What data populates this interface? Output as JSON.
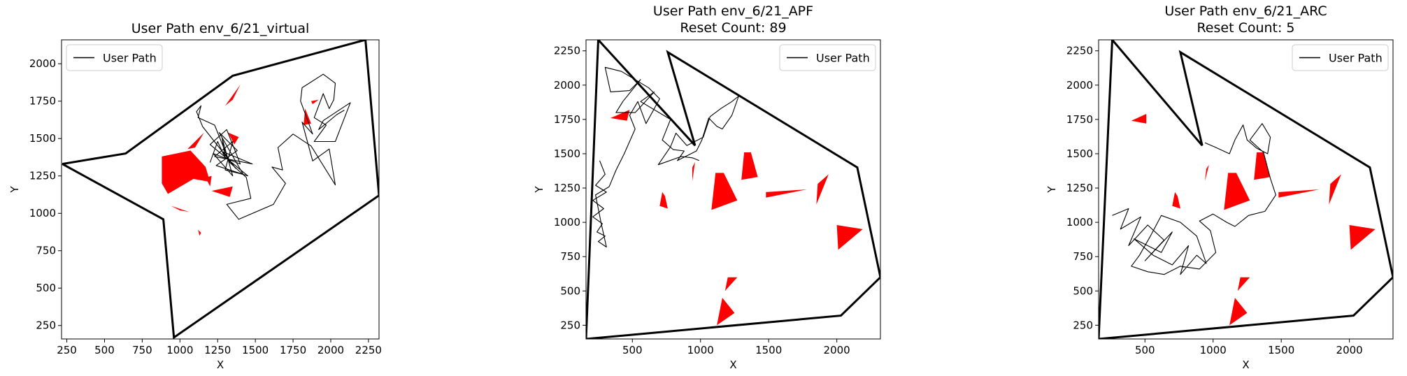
{
  "chart_data": [
    {
      "type": "line",
      "title": "User Path env_6/21_virtual",
      "subtitle": "",
      "xlabel": "X",
      "ylabel": "Y",
      "xlim": [
        215,
        2320
      ],
      "ylim": [
        160,
        2160
      ],
      "xticks": [
        250,
        500,
        750,
        1000,
        1250,
        1500,
        1750,
        2000,
        2250
      ],
      "yticks": [
        250,
        500,
        750,
        1000,
        1250,
        1500,
        1750,
        2000
      ],
      "legend": {
        "label": "User Path",
        "position": "top-left"
      },
      "boundary": [
        [
          220,
          1330
        ],
        [
          640,
          1400
        ],
        [
          1350,
          1920
        ],
        [
          2230,
          2160
        ],
        [
          2320,
          1120
        ],
        [
          960,
          170
        ],
        [
          890,
          960
        ],
        [
          220,
          1330
        ]
      ],
      "obstacles": [
        [
          [
            880,
            1380
          ],
          [
            1070,
            1420
          ],
          [
            1170,
            1310
          ],
          [
            1200,
            1210
          ],
          [
            1090,
            1230
          ],
          [
            920,
            1130
          ],
          [
            880,
            1200
          ]
        ],
        [
          [
            1050,
            1430
          ],
          [
            1160,
            1540
          ],
          [
            1100,
            1440
          ]
        ],
        [
          [
            1300,
            1720
          ],
          [
            1400,
            1860
          ],
          [
            1350,
            1760
          ]
        ],
        [
          [
            1320,
            1540
          ],
          [
            1390,
            1510
          ],
          [
            1360,
            1460
          ]
        ],
        [
          [
            1210,
            1150
          ],
          [
            1350,
            1180
          ],
          [
            1330,
            1110
          ]
        ],
        [
          [
            1170,
            1240
          ],
          [
            1210,
            1250
          ],
          [
            1200,
            1180
          ]
        ],
        [
          [
            940,
            1050
          ],
          [
            1000,
            1020
          ],
          [
            1060,
            1010
          ]
        ],
        [
          [
            1120,
            890
          ],
          [
            1140,
            870
          ],
          [
            1130,
            850
          ]
        ],
        [
          [
            1830,
            1700
          ],
          [
            1870,
            1600
          ],
          [
            1820,
            1590
          ]
        ],
        [
          [
            1870,
            1750
          ],
          [
            1920,
            1760
          ],
          [
            1880,
            1730
          ]
        ]
      ],
      "path": [
        [
          1200,
          1340
        ],
        [
          1250,
          1480
        ],
        [
          1300,
          1370
        ],
        [
          1280,
          1500
        ],
        [
          1350,
          1250
        ],
        [
          1220,
          1400
        ],
        [
          1400,
          1330
        ],
        [
          1310,
          1560
        ],
        [
          1200,
          1460
        ],
        [
          1450,
          1250
        ],
        [
          1240,
          1320
        ],
        [
          1380,
          1420
        ],
        [
          1260,
          1540
        ],
        [
          1420,
          1260
        ],
        [
          1300,
          1290
        ],
        [
          1350,
          1480
        ],
        [
          1230,
          1380
        ],
        [
          1480,
          1330
        ],
        [
          1290,
          1410
        ],
        [
          1370,
          1300
        ],
        [
          1150,
          1580
        ],
        [
          1110,
          1680
        ],
        [
          1140,
          1720
        ],
        [
          1120,
          1640
        ],
        [
          1230,
          1590
        ],
        [
          1330,
          1340
        ],
        [
          1440,
          1240
        ],
        [
          1470,
          1100
        ],
        [
          1310,
          1060
        ],
        [
          1390,
          960
        ],
        [
          1620,
          1060
        ],
        [
          1700,
          1200
        ],
        [
          1610,
          1310
        ],
        [
          1680,
          1290
        ],
        [
          1650,
          1440
        ],
        [
          1750,
          1530
        ],
        [
          1870,
          1450
        ],
        [
          2030,
          1190
        ],
        [
          1990,
          1430
        ],
        [
          1880,
          1350
        ],
        [
          1810,
          1610
        ],
        [
          1880,
          1530
        ],
        [
          1800,
          1750
        ],
        [
          1810,
          1840
        ],
        [
          1950,
          1930
        ],
        [
          2030,
          1870
        ],
        [
          2020,
          1760
        ],
        [
          1990,
          1700
        ],
        [
          1950,
          1800
        ],
        [
          1890,
          1640
        ],
        [
          1970,
          1590
        ],
        [
          1890,
          1480
        ],
        [
          2030,
          1480
        ],
        [
          2080,
          1610
        ],
        [
          2130,
          1740
        ],
        [
          1950,
          1620
        ],
        [
          1920,
          1560
        ],
        [
          2040,
          1660
        ],
        [
          2090,
          1690
        ]
      ]
    },
    {
      "type": "line",
      "title": "User Path env_6/21_APF",
      "subtitle": "Reset Count: 89",
      "xlabel": "X",
      "ylabel": "Y",
      "xlim": [
        160,
        2320
      ],
      "ylim": [
        150,
        2330
      ],
      "xticks": [
        500,
        1000,
        1500,
        2000
      ],
      "yticks": [
        250,
        500,
        750,
        1000,
        1250,
        1500,
        1750,
        2000,
        2250
      ],
      "legend": {
        "label": "User Path",
        "position": "top-right"
      },
      "boundary": [
        [
          160,
          150
        ],
        [
          250,
          2330
        ],
        [
          960,
          1560
        ],
        [
          760,
          2240
        ],
        [
          2150,
          1400
        ],
        [
          2320,
          600
        ],
        [
          2030,
          320
        ],
        [
          160,
          150
        ]
      ],
      "obstacles": [
        [
          [
            1080,
            1090
          ],
          [
            1270,
            1160
          ],
          [
            1170,
            1360
          ],
          [
            1110,
            1360
          ]
        ],
        [
          [
            1300,
            1310
          ],
          [
            1420,
            1330
          ],
          [
            1370,
            1510
          ],
          [
            1320,
            1510
          ]
        ],
        [
          [
            700,
            1120
          ],
          [
            760,
            1100
          ],
          [
            740,
            1190
          ],
          [
            720,
            1220
          ]
        ],
        [
          [
            1480,
            1220
          ],
          [
            1780,
            1240
          ],
          [
            1480,
            1180
          ]
        ],
        [
          [
            1850,
            1130
          ],
          [
            1940,
            1350
          ],
          [
            1860,
            1280
          ]
        ],
        [
          [
            2010,
            800
          ],
          [
            2190,
            950
          ],
          [
            2000,
            980
          ]
        ],
        [
          [
            1120,
            250
          ],
          [
            1250,
            340
          ],
          [
            1160,
            450
          ]
        ],
        [
          [
            1180,
            500
          ],
          [
            1270,
            600
          ],
          [
            1200,
            600
          ]
        ],
        [
          [
            340,
            1760
          ],
          [
            480,
            1820
          ],
          [
            460,
            1740
          ]
        ],
        [
          [
            940,
            1300
          ],
          [
            960,
            1440
          ],
          [
            940,
            1400
          ]
        ]
      ],
      "path": [
        [
          260,
          1450
        ],
        [
          300,
          1350
        ],
        [
          230,
          1270
        ],
        [
          310,
          1220
        ],
        [
          210,
          1160
        ],
        [
          290,
          1100
        ],
        [
          210,
          1040
        ],
        [
          280,
          990
        ],
        [
          240,
          930
        ],
        [
          300,
          900
        ],
        [
          250,
          860
        ],
        [
          310,
          820
        ],
        [
          270,
          1000
        ],
        [
          230,
          1200
        ],
        [
          330,
          1260
        ],
        [
          380,
          1380
        ],
        [
          440,
          1500
        ],
        [
          520,
          1680
        ],
        [
          480,
          1780
        ],
        [
          540,
          1880
        ],
        [
          600,
          1720
        ],
        [
          700,
          1900
        ],
        [
          620,
          1980
        ],
        [
          420,
          2100
        ],
        [
          300,
          2130
        ],
        [
          340,
          1950
        ],
        [
          480,
          1960
        ],
        [
          560,
          2040
        ],
        [
          430,
          1880
        ],
        [
          380,
          1800
        ],
        [
          520,
          1800
        ],
        [
          660,
          1950
        ],
        [
          560,
          1880
        ],
        [
          780,
          1750
        ],
        [
          720,
          1600
        ],
        [
          800,
          1530
        ],
        [
          880,
          1520
        ],
        [
          830,
          1450
        ],
        [
          970,
          1520
        ],
        [
          1010,
          1600
        ],
        [
          1060,
          1760
        ],
        [
          1120,
          1700
        ],
        [
          1160,
          1680
        ],
        [
          1230,
          1780
        ],
        [
          1280,
          1920
        ],
        [
          1230,
          1880
        ],
        [
          1150,
          1830
        ],
        [
          1070,
          1770
        ],
        [
          1020,
          1620
        ],
        [
          900,
          1560
        ],
        [
          820,
          1650
        ],
        [
          780,
          1550
        ],
        [
          690,
          1420
        ],
        [
          860,
          1480
        ],
        [
          940,
          1470
        ],
        [
          990,
          1450
        ]
      ]
    },
    {
      "type": "line",
      "title": "User Path env_6/21_ARC",
      "subtitle": "Reset Count: 5",
      "xlabel": "X",
      "ylabel": "Y",
      "xlim": [
        160,
        2320
      ],
      "ylim": [
        150,
        2330
      ],
      "xticks": [
        500,
        1000,
        1500,
        2000
      ],
      "yticks": [
        250,
        500,
        750,
        1000,
        1250,
        1500,
        1750,
        2000,
        2250
      ],
      "legend": {
        "label": "User Path",
        "position": "top-right"
      },
      "boundary": [
        [
          160,
          150
        ],
        [
          260,
          2330
        ],
        [
          920,
          1560
        ],
        [
          760,
          2240
        ],
        [
          2150,
          1400
        ],
        [
          2320,
          600
        ],
        [
          2030,
          320
        ],
        [
          160,
          150
        ]
      ],
      "obstacles": [
        [
          [
            1080,
            1090
          ],
          [
            1270,
            1160
          ],
          [
            1170,
            1360
          ],
          [
            1110,
            1360
          ]
        ],
        [
          [
            1300,
            1310
          ],
          [
            1420,
            1330
          ],
          [
            1370,
            1510
          ],
          [
            1320,
            1510
          ]
        ],
        [
          [
            700,
            1120
          ],
          [
            760,
            1100
          ],
          [
            740,
            1190
          ],
          [
            720,
            1220
          ]
        ],
        [
          [
            1480,
            1220
          ],
          [
            1780,
            1240
          ],
          [
            1480,
            1180
          ]
        ],
        [
          [
            1850,
            1130
          ],
          [
            1940,
            1350
          ],
          [
            1860,
            1280
          ]
        ],
        [
          [
            2010,
            800
          ],
          [
            2190,
            950
          ],
          [
            2000,
            980
          ]
        ],
        [
          [
            1120,
            250
          ],
          [
            1250,
            340
          ],
          [
            1160,
            450
          ]
        ],
        [
          [
            1180,
            500
          ],
          [
            1270,
            600
          ],
          [
            1200,
            600
          ]
        ],
        [
          [
            400,
            1740
          ],
          [
            510,
            1790
          ],
          [
            510,
            1720
          ]
        ],
        [
          [
            940,
            1300
          ],
          [
            970,
            1420
          ],
          [
            950,
            1390
          ]
        ]
      ],
      "path": [
        [
          260,
          1050
        ],
        [
          380,
          1100
        ],
        [
          320,
          950
        ],
        [
          470,
          1040
        ],
        [
          380,
          830
        ],
        [
          520,
          980
        ],
        [
          640,
          870
        ],
        [
          500,
          720
        ],
        [
          700,
          930
        ],
        [
          620,
          780
        ],
        [
          420,
          880
        ],
        [
          560,
          760
        ],
        [
          700,
          690
        ],
        [
          820,
          830
        ],
        [
          760,
          620
        ],
        [
          880,
          760
        ],
        [
          950,
          700
        ],
        [
          880,
          900
        ],
        [
          760,
          1000
        ],
        [
          620,
          1050
        ],
        [
          540,
          900
        ],
        [
          460,
          760
        ],
        [
          400,
          680
        ],
        [
          520,
          640
        ],
        [
          640,
          620
        ],
        [
          760,
          680
        ],
        [
          900,
          660
        ],
        [
          1020,
          780
        ],
        [
          980,
          940
        ],
        [
          900,
          1010
        ],
        [
          1000,
          1060
        ],
        [
          1100,
          1000
        ],
        [
          1160,
          970
        ],
        [
          1260,
          1050
        ],
        [
          1380,
          1080
        ],
        [
          1460,
          1200
        ],
        [
          1420,
          1320
        ],
        [
          1370,
          1510
        ],
        [
          1270,
          1600
        ],
        [
          1360,
          1720
        ],
        [
          1420,
          1620
        ],
        [
          1400,
          1500
        ],
        [
          1320,
          1540
        ],
        [
          1250,
          1600
        ],
        [
          1220,
          1710
        ],
        [
          1160,
          1600
        ],
        [
          1120,
          1500
        ],
        [
          1010,
          1550
        ],
        [
          940,
          1580
        ]
      ]
    }
  ]
}
